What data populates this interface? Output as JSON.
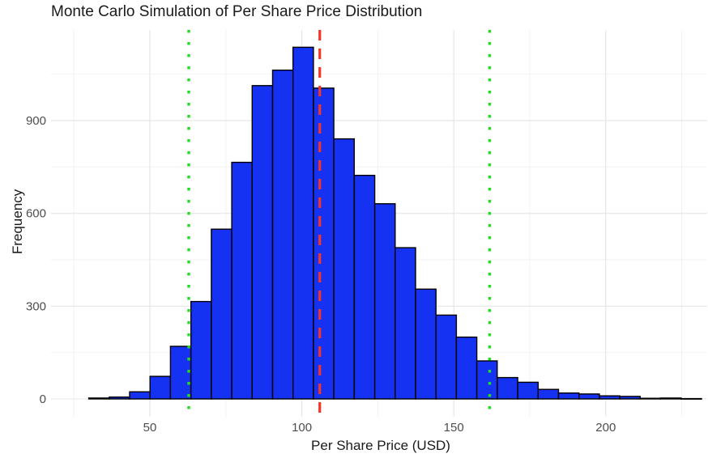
{
  "chart_data": {
    "type": "bar",
    "subtype": "histogram",
    "title": "Monte Carlo Simulation of Per Share Price Distribution",
    "xlabel": "Per Share Price (USD)",
    "ylabel": "Frequency",
    "x_ticks": [
      50,
      100,
      150,
      200
    ],
    "x_minor_gridlines": [
      25,
      75,
      125,
      175,
      225
    ],
    "y_ticks": [
      0,
      300,
      600,
      900
    ],
    "y_minor_gridlines": [
      150,
      450,
      750,
      1050
    ],
    "xlim": [
      17.5,
      233.5
    ],
    "ylim": [
      -57,
      1195
    ],
    "grid": true,
    "legend": "none",
    "bin_start": 29.9,
    "bin_width": 6.72,
    "counts": [
      3,
      6,
      23,
      73,
      170,
      315,
      549,
      765,
      1013,
      1063,
      1137,
      1005,
      841,
      723,
      631,
      489,
      355,
      271,
      200,
      123,
      69,
      54,
      31,
      19,
      16,
      10,
      8,
      2,
      3,
      1
    ],
    "vlines": [
      {
        "x": 62.8,
        "color": "#20DF20",
        "style": "dotted"
      },
      {
        "x": 105.9,
        "color": "#FA3423",
        "style": "dashed"
      },
      {
        "x": 161.8,
        "color": "#20DF20",
        "style": "dotted"
      }
    ],
    "colors": {
      "bar_fill": "#1532F2",
      "bar_stroke": "#000000",
      "grid_major": "#e4e4e4",
      "grid_minor": "#f0f0f0",
      "tick_label": "#4d4d4d",
      "text": "#1a1a1a",
      "background": "#ffffff"
    }
  }
}
